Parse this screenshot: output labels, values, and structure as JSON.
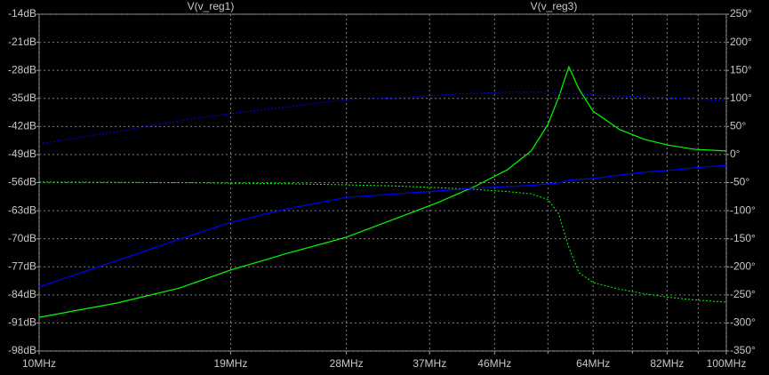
{
  "chart_data": {
    "type": "line",
    "xscale": "log",
    "x": [
      10,
      13,
      16,
      19,
      23,
      28,
      33,
      38,
      43,
      48,
      52,
      55,
      57,
      59,
      61,
      64,
      70,
      76,
      82,
      90,
      100
    ],
    "xlim": [
      10,
      100
    ],
    "xticks": [
      {
        "value": 10,
        "label": "10MHz"
      },
      {
        "value": 19,
        "label": "19MHz"
      },
      {
        "value": 28,
        "label": "28MHz"
      },
      {
        "value": 37,
        "label": "37MHz"
      },
      {
        "value": 46,
        "label": "46MHz"
      },
      {
        "value": 64,
        "label": "64MHz"
      },
      {
        "value": 82,
        "label": "82MHz"
      },
      {
        "value": 100,
        "label": "100MHz"
      }
    ],
    "xminorticks": [
      55,
      73,
      91
    ],
    "ylim": [
      -98,
      -14
    ],
    "yticks": [
      {
        "value": -14,
        "label": "-14dB"
      },
      {
        "value": -21,
        "label": "-21dB"
      },
      {
        "value": -28,
        "label": "-28dB"
      },
      {
        "value": -35,
        "label": "-35dB"
      },
      {
        "value": -42,
        "label": "-42dB"
      },
      {
        "value": -49,
        "label": "-49dB"
      },
      {
        "value": -56,
        "label": "-56dB"
      },
      {
        "value": -63,
        "label": "-63dB"
      },
      {
        "value": -70,
        "label": "-70dB"
      },
      {
        "value": -77,
        "label": "-77dB"
      },
      {
        "value": -84,
        "label": "-84dB"
      },
      {
        "value": -91,
        "label": "-91dB"
      },
      {
        "value": -98,
        "label": "-98dB"
      }
    ],
    "y2lim": [
      -350,
      250
    ],
    "y2ticks": [
      {
        "value": 250,
        "label": "250°"
      },
      {
        "value": 200,
        "label": "200°"
      },
      {
        "value": 150,
        "label": "150°"
      },
      {
        "value": 100,
        "label": "100°"
      },
      {
        "value": 50,
        "label": "50°"
      },
      {
        "value": 0,
        "label": "0°"
      },
      {
        "value": -50,
        "label": "-50°"
      },
      {
        "value": -100,
        "label": "-100°"
      },
      {
        "value": -150,
        "label": "-150°"
      },
      {
        "value": -200,
        "label": "-200°"
      },
      {
        "value": -250,
        "label": "-250°"
      },
      {
        "value": -300,
        "label": "-300°"
      },
      {
        "value": -350,
        "label": "-350°"
      }
    ],
    "grid": true,
    "series": [
      {
        "name": "V(v_reg1)",
        "color": "#00ff00",
        "values": [
          -89.6,
          -86.0,
          -82.3,
          -77.8,
          -73.6,
          -69.6,
          -65.0,
          -61.0,
          -57.0,
          -52.8,
          -48.1,
          -41.5,
          -34.8,
          -27.1,
          -32.6,
          -38.2,
          -42.8,
          -45.2,
          -46.6,
          -47.7,
          -48.1
        ],
        "phase": [
          -49,
          -49.5,
          -50,
          -51,
          -52,
          -54,
          -56,
          -59,
          -62,
          -66,
          -70,
          -80,
          -105,
          -165,
          -210,
          -228,
          -240,
          -248,
          -254,
          -259,
          -263
        ]
      },
      {
        "name": "V(v_reg3)",
        "color": "#0000ff",
        "values": [
          -82.0,
          -75.4,
          -70.1,
          -65.9,
          -62.5,
          -59.7,
          -58.8,
          -58.1,
          -57.4,
          -57.0,
          -56.7,
          -56.3,
          -56.1,
          -55.4,
          -55.2,
          -55.0,
          -54.1,
          -53.4,
          -53.0,
          -52.3,
          -51.7
        ],
        "phase": [
          19,
          41,
          60,
          73,
          85,
          98,
          101,
          106,
          109,
          111,
          111,
          111,
          109,
          108,
          108,
          106,
          104,
          103,
          101,
          99,
          96
        ]
      }
    ]
  }
}
